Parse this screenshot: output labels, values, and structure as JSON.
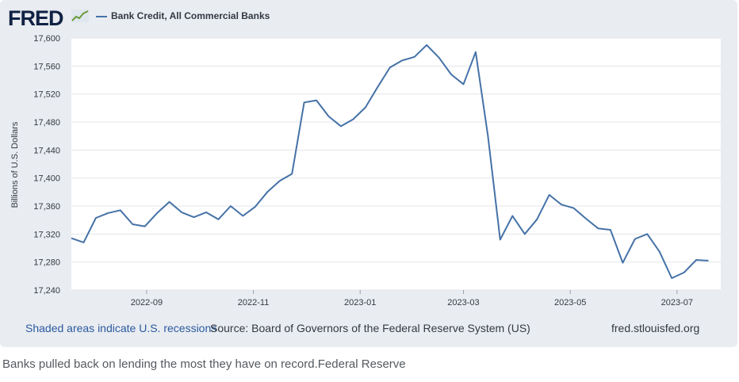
{
  "logo": {
    "text": "FRED"
  },
  "chart_data": {
    "type": "line",
    "title": "",
    "xlabel": "",
    "ylabel": "Billions of U.S. Dollars",
    "ylim": [
      17240,
      17600
    ],
    "yticks": [
      17240,
      17280,
      17320,
      17360,
      17400,
      17440,
      17480,
      17520,
      17560,
      17600
    ],
    "ytick_labels": [
      "17,240",
      "17,280",
      "17,320",
      "17,360",
      "17,400",
      "17,440",
      "17,480",
      "17,520",
      "17,560",
      "17,600"
    ],
    "xlim": [
      "2022-07-20",
      "2023-07-26"
    ],
    "xticks": [
      "2022-09-01",
      "2022-11-01",
      "2023-01-01",
      "2023-03-01",
      "2023-05-01",
      "2023-07-01"
    ],
    "xtick_labels": [
      "2022-09",
      "2022-11",
      "2023-01",
      "2023-03",
      "2023-05",
      "2023-07"
    ],
    "grid": true,
    "legend": "top-left",
    "series": [
      {
        "name": "Bank Credit, All Commercial Banks",
        "color": "#4572a7",
        "points": [
          [
            "2022-07-20",
            17314
          ],
          [
            "2022-07-27",
            17308
          ],
          [
            "2022-08-03",
            17343
          ],
          [
            "2022-08-10",
            17350
          ],
          [
            "2022-08-17",
            17354
          ],
          [
            "2022-08-24",
            17334
          ],
          [
            "2022-08-31",
            17331
          ],
          [
            "2022-09-07",
            17350
          ],
          [
            "2022-09-14",
            17366
          ],
          [
            "2022-09-21",
            17351
          ],
          [
            "2022-09-28",
            17344
          ],
          [
            "2022-10-05",
            17351
          ],
          [
            "2022-10-12",
            17341
          ],
          [
            "2022-10-19",
            17360
          ],
          [
            "2022-10-26",
            17346
          ],
          [
            "2022-11-02",
            17359
          ],
          [
            "2022-11-09",
            17380
          ],
          [
            "2022-11-16",
            17396
          ],
          [
            "2022-11-23",
            17406
          ],
          [
            "2022-11-30",
            17508
          ],
          [
            "2022-12-07",
            17511
          ],
          [
            "2022-12-14",
            17488
          ],
          [
            "2022-12-21",
            17474
          ],
          [
            "2022-12-28",
            17484
          ],
          [
            "2023-01-04",
            17501
          ],
          [
            "2023-01-11",
            17530
          ],
          [
            "2023-01-18",
            17558
          ],
          [
            "2023-01-25",
            17568
          ],
          [
            "2023-02-01",
            17573
          ],
          [
            "2023-02-08",
            17590
          ],
          [
            "2023-02-15",
            17572
          ],
          [
            "2023-02-22",
            17548
          ],
          [
            "2023-03-01",
            17534
          ],
          [
            "2023-03-08",
            17580
          ],
          [
            "2023-03-15",
            17460
          ],
          [
            "2023-03-22",
            17312
          ],
          [
            "2023-03-29",
            17346
          ],
          [
            "2023-04-05",
            17320
          ],
          [
            "2023-04-12",
            17341
          ],
          [
            "2023-04-19",
            17376
          ],
          [
            "2023-04-26",
            17362
          ],
          [
            "2023-05-03",
            17357
          ],
          [
            "2023-05-10",
            17342
          ],
          [
            "2023-05-17",
            17328
          ],
          [
            "2023-05-24",
            17326
          ],
          [
            "2023-05-31",
            17279
          ],
          [
            "2023-06-07",
            17313
          ],
          [
            "2023-06-14",
            17320
          ],
          [
            "2023-06-21",
            17295
          ],
          [
            "2023-06-28",
            17257
          ],
          [
            "2023-07-05",
            17265
          ],
          [
            "2023-07-12",
            17283
          ],
          [
            "2023-07-19",
            17282
          ]
        ]
      }
    ]
  },
  "footer": {
    "recessions": "Shaded areas indicate U.S. recessions",
    "source": "Source: Board of Governors of the Federal Reserve System (US)",
    "site": "fred.stlouisfed.org"
  },
  "caption": "Banks pulled back on lending the most they have on record.Federal Reserve"
}
